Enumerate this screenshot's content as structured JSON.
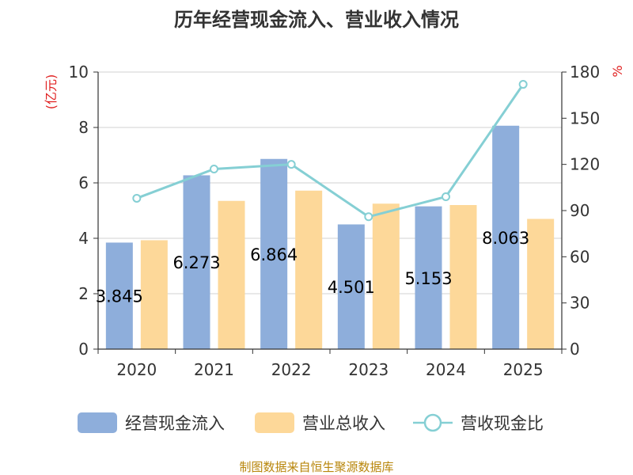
{
  "colors": {
    "cash_inflow": "#8eaedb",
    "revenue": "#fdd899",
    "ratio": "#85cfd4",
    "grid": "#d0d0d0",
    "axis": "#333333",
    "unit": "#e02020",
    "source": "#b8860b"
  },
  "source_note": "制图数据来自恒生聚源数据库",
  "chart_data": {
    "type": "bar",
    "title": "历年经营现金流入、营业收入情况",
    "categories": [
      "2020",
      "2021",
      "2022",
      "2023",
      "2024",
      "2025"
    ],
    "y_left": {
      "unit": "(亿元)",
      "ylim": [
        0,
        10
      ],
      "ticks": [
        "0",
        "2",
        "4",
        "6",
        "8",
        "10"
      ]
    },
    "y_right": {
      "unit": "%",
      "ylim": [
        0,
        180
      ],
      "ticks": [
        "0",
        "30",
        "60",
        "90",
        "120",
        "150",
        "180"
      ]
    },
    "grid": true,
    "legend_position": "bottom",
    "series": [
      {
        "name": "经营现金流入",
        "type": "bar",
        "axis": "left",
        "values": [
          3.845,
          6.273,
          6.864,
          4.501,
          5.153,
          8.063
        ],
        "labels": [
          "3.845",
          "6.273",
          "6.864",
          "4.501",
          "5.153",
          "8.063"
        ]
      },
      {
        "name": "营业总收入",
        "type": "bar",
        "axis": "left",
        "values": [
          3.93,
          5.35,
          5.72,
          5.25,
          5.2,
          4.7
        ]
      },
      {
        "name": "营收现金比",
        "type": "line",
        "axis": "right",
        "values": [
          98,
          117,
          120,
          86,
          99,
          172
        ]
      }
    ]
  }
}
